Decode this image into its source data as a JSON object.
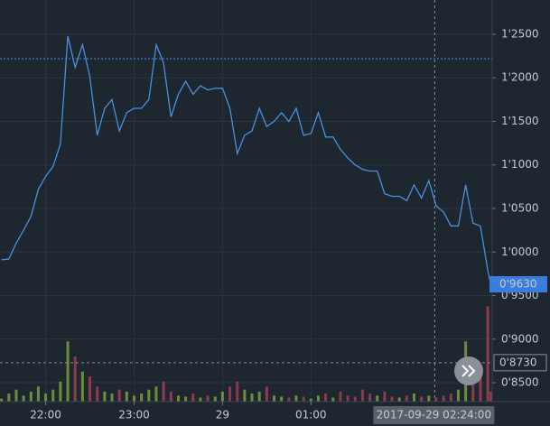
{
  "chart_data": {
    "type": "line",
    "x": [
      "2017-09-28 21:30",
      "2017-09-28 21:35",
      "2017-09-28 21:40",
      "2017-09-28 21:45",
      "2017-09-28 21:50",
      "2017-09-28 21:55",
      "2017-09-28 22:00",
      "2017-09-28 22:05",
      "2017-09-28 22:10",
      "2017-09-28 22:15",
      "2017-09-28 22:20",
      "2017-09-28 22:25",
      "2017-09-28 22:30",
      "2017-09-28 22:35",
      "2017-09-28 22:40",
      "2017-09-28 22:45",
      "2017-09-28 22:50",
      "2017-09-28 22:55",
      "2017-09-28 23:00",
      "2017-09-28 23:05",
      "2017-09-28 23:10",
      "2017-09-28 23:15",
      "2017-09-28 23:20",
      "2017-09-28 23:25",
      "2017-09-28 23:30",
      "2017-09-28 23:35",
      "2017-09-28 23:40",
      "2017-09-28 23:45",
      "2017-09-28 23:50",
      "2017-09-28 23:55",
      "2017-09-29 00:00",
      "2017-09-29 00:05",
      "2017-09-29 00:10",
      "2017-09-29 00:15",
      "2017-09-29 00:20",
      "2017-09-29 00:25",
      "2017-09-29 00:30",
      "2017-09-29 00:35",
      "2017-09-29 00:40",
      "2017-09-29 00:45",
      "2017-09-29 00:50",
      "2017-09-29 00:55",
      "2017-09-29 01:00",
      "2017-09-29 01:05",
      "2017-09-29 01:10",
      "2017-09-29 01:15",
      "2017-09-29 01:20",
      "2017-09-29 01:25",
      "2017-09-29 01:30",
      "2017-09-29 01:35",
      "2017-09-29 01:40",
      "2017-09-29 01:45",
      "2017-09-29 01:50",
      "2017-09-29 01:55",
      "2017-09-29 02:00",
      "2017-09-29 02:05",
      "2017-09-29 02:10",
      "2017-09-29 02:15",
      "2017-09-29 02:20",
      "2017-09-29 02:25",
      "2017-09-29 02:30",
      "2017-09-29 02:35",
      "2017-09-29 02:40",
      "2017-09-29 02:45",
      "2017-09-29 02:50",
      "2017-09-29 02:55",
      "2017-09-29 03:00",
      "2017-09-29 03:02"
    ],
    "series": [
      {
        "color": "#4a8fe0",
        "values": [
          0.991,
          0.992,
          1.01,
          1.025,
          1.041,
          1.072,
          1.087,
          1.098,
          1.124,
          1.248,
          1.212,
          1.238,
          1.201,
          1.134,
          1.165,
          1.175,
          1.139,
          1.16,
          1.165,
          1.165,
          1.175,
          1.238,
          1.217,
          1.155,
          1.181,
          1.196,
          1.181,
          1.191,
          1.186,
          1.188,
          1.188,
          1.165,
          1.113,
          1.134,
          1.139,
          1.165,
          1.144,
          1.15,
          1.16,
          1.15,
          1.165,
          1.134,
          1.136,
          1.16,
          1.132,
          1.132,
          1.118,
          1.108,
          1.1,
          1.095,
          1.093,
          1.093,
          1.067,
          1.064,
          1.064,
          1.059,
          1.077,
          1.062,
          1.082,
          1.053,
          1.046,
          1.03,
          1.03,
          1.077,
          1.033,
          1.03,
          0.979,
          0.963
        ]
      },
      {
        "type": "bar",
        "axis": "y2",
        "color": "#6f8c3c",
        "down_color": "#8c3a4e",
        "values": [
          3,
          8,
          12,
          6,
          10,
          15,
          8,
          12,
          20,
          60,
          45,
          30,
          25,
          15,
          10,
          8,
          12,
          10,
          6,
          8,
          12,
          15,
          20,
          10,
          6,
          5,
          8,
          4,
          6,
          5,
          10,
          15,
          20,
          12,
          8,
          10,
          15,
          6,
          5,
          4,
          6,
          5,
          3,
          6,
          8,
          4,
          10,
          6,
          5,
          12,
          8,
          6,
          10,
          5,
          4,
          6,
          8,
          5,
          6,
          4,
          6,
          8,
          12,
          60,
          20,
          30,
          95,
          10
        ]
      }
    ],
    "xlim": [
      "2017-09-28 21:29",
      "2017-09-29 03:03"
    ],
    "xticks": [
      {
        "value": "2017-09-28 22:00",
        "label": "22:00"
      },
      {
        "value": "2017-09-28 23:00",
        "label": "23:00"
      },
      {
        "value": "2017-09-29 00:00",
        "label": "29"
      },
      {
        "value": "2017-09-29 01:00",
        "label": "01:00"
      }
    ],
    "ylim": [
      0.8283,
      1.2893
    ],
    "yticks": [
      {
        "value": 0.85,
        "label": "0'8500"
      },
      {
        "value": 0.9,
        "label": "0'9000"
      },
      {
        "value": 0.95,
        "label": "0'9500"
      },
      {
        "value": 1,
        "label": "1'0000"
      },
      {
        "value": 1.05,
        "label": "1'0500"
      },
      {
        "value": 1.1,
        "label": "1'1000"
      },
      {
        "value": 1.15,
        "label": "1'1500"
      },
      {
        "value": 1.2,
        "label": "1'2000"
      },
      {
        "value": 1.25,
        "label": "1'2500"
      }
    ],
    "y2lim": [
      0,
      400
    ],
    "grid": true,
    "price_label": {
      "value": 0.963,
      "label": "0'9630",
      "color": "#3b7ddd"
    },
    "marker_line": {
      "value": 0.873,
      "label": "0'8730"
    },
    "level_line": {
      "value": 1.222,
      "color": "#4a8fe0"
    },
    "crosshair": {
      "x": "2017-09-29 02:24",
      "label": "2017-09-29 02:24:00"
    }
  }
}
